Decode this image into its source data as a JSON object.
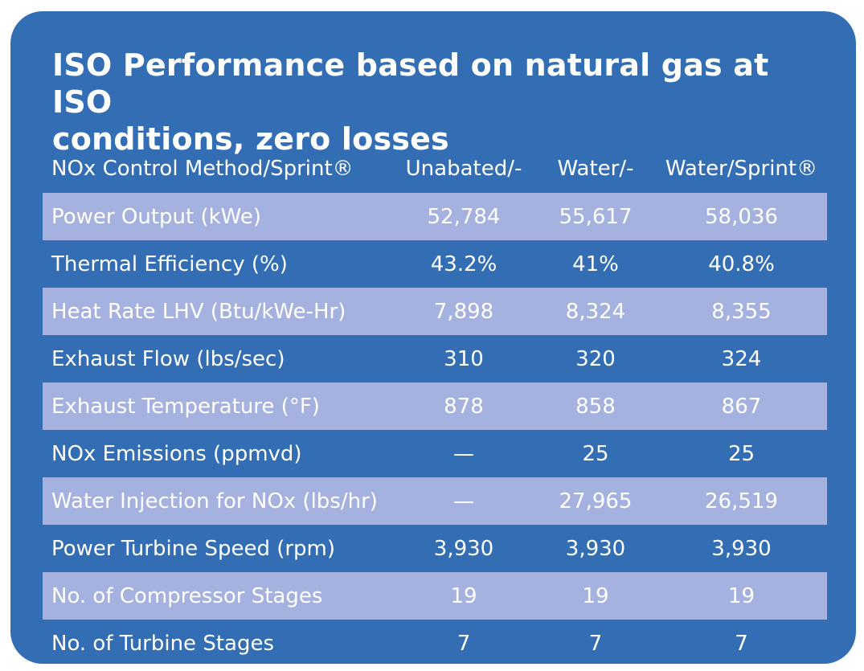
{
  "title_line1": "ISO Performance based on natural gas at ISO",
  "title_line2": "conditions, zero losses",
  "header": {
    "label": "NOx Control Method/Sprint®",
    "columns": [
      "Unabated/-",
      "Water/-",
      "Water/Sprint®"
    ]
  },
  "rows": [
    {
      "label": "Power Output (kWe)",
      "values": [
        "52,784",
        "55,617",
        "58,036"
      ]
    },
    {
      "label": "Thermal Efficiency (%)",
      "values": [
        "43.2%",
        "41%",
        "40.8%"
      ]
    },
    {
      "label": "Heat Rate LHV (Btu/kWe-Hr)",
      "values": [
        "7,898",
        "8,324",
        "8,355"
      ]
    },
    {
      "label": "Exhaust Flow (lbs/sec)",
      "values": [
        "310",
        "320",
        "324"
      ]
    },
    {
      "label": "Exhaust Temperature (°F)",
      "values": [
        "878",
        "858",
        "867"
      ]
    },
    {
      "label": "NOx Emissions (ppmvd)",
      "values": [
        "—",
        "25",
        "25"
      ]
    },
    {
      "label": "Water Injection for NOx (lbs/hr)",
      "values": [
        "—",
        "27,965",
        "26,519"
      ]
    },
    {
      "label": "Power Turbine Speed (rpm)",
      "values": [
        "3,930",
        "3,930",
        "3,930"
      ]
    },
    {
      "label": "No. of Compressor Stages",
      "values": [
        "19",
        "19",
        "19"
      ]
    },
    {
      "label": "No. of Turbine Stages",
      "values": [
        "7",
        "7",
        "7"
      ]
    }
  ]
}
